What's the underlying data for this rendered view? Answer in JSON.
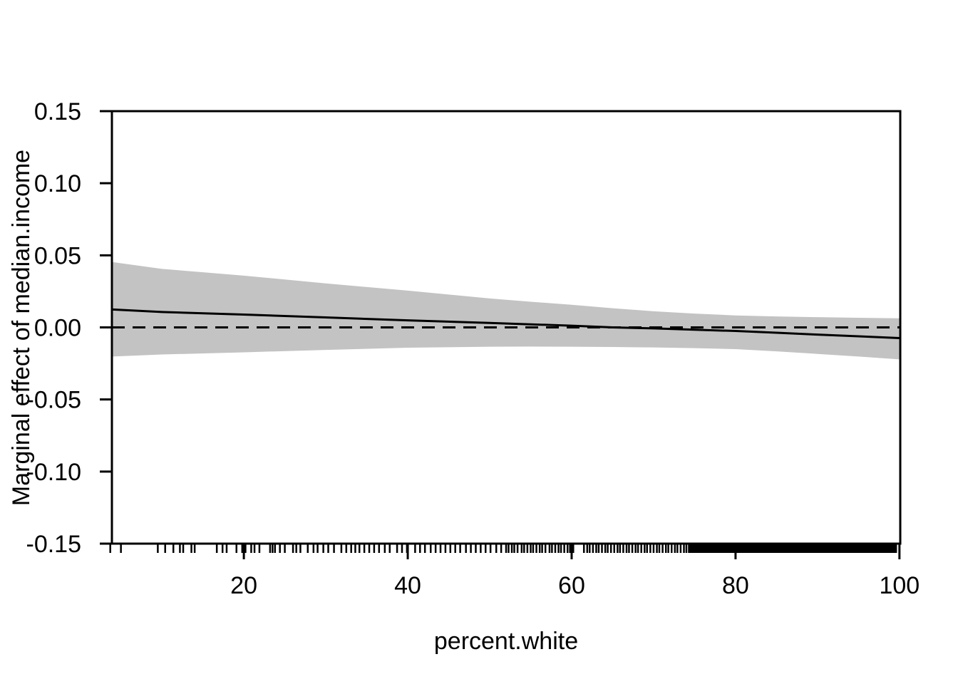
{
  "figure": {
    "background": "#ffffff",
    "x_axis_title": "percent.white",
    "y_axis_title": "Marginal effect of median.income"
  },
  "colors": {
    "band": "#c3c3c3",
    "line": "#000000",
    "axis": "#000000",
    "text": "#000000"
  },
  "chart_data": {
    "type": "line",
    "title": "",
    "xlabel": "percent.white",
    "ylabel": "Marginal effect of median.income",
    "xlim": [
      3.9,
      100.1
    ],
    "ylim": [
      -0.15,
      0.15
    ],
    "x_ticks": [
      20,
      40,
      60,
      80,
      100
    ],
    "y_ticks": [
      -0.15,
      -0.1,
      -0.05,
      0.0,
      0.05,
      0.1,
      0.15
    ],
    "grid": false,
    "box": true,
    "legend": "none",
    "zero_line": {
      "value": 0,
      "style": "dashed"
    },
    "x": [
      4,
      10,
      20,
      30,
      40,
      50,
      55,
      60,
      65,
      70,
      75,
      80,
      85,
      90,
      95,
      100
    ],
    "series": [
      {
        "name": "marginal-effect",
        "style": "solid",
        "values": [
          0.0124,
          0.0107,
          0.0089,
          0.0069,
          0.0049,
          0.0031,
          0.0021,
          0.0012,
          0.0,
          -0.0007,
          -0.0016,
          -0.0025,
          -0.0037,
          -0.005,
          -0.0062,
          -0.0074
        ]
      },
      {
        "name": "ci-upper",
        "style": "band-edge",
        "values": [
          0.0453,
          0.0406,
          0.0359,
          0.0305,
          0.0255,
          0.0201,
          0.0178,
          0.0157,
          0.0133,
          0.0112,
          0.0096,
          0.0083,
          0.0076,
          0.0071,
          0.0067,
          0.0063
        ]
      },
      {
        "name": "ci-lower",
        "style": "band-edge",
        "values": [
          -0.0202,
          -0.0188,
          -0.0173,
          -0.0156,
          -0.0141,
          -0.0134,
          -0.0133,
          -0.0134,
          -0.0136,
          -0.0139,
          -0.0144,
          -0.0151,
          -0.0166,
          -0.0184,
          -0.0202,
          -0.0222
        ]
      }
    ],
    "rug": {
      "ticks": [
        3.7,
        5.0,
        9.5,
        10.4,
        11.4,
        12.2,
        12.6,
        13.6,
        14.0,
        16.7,
        17.4,
        17.9,
        19.1,
        19.8,
        20.2,
        20.9,
        21.3,
        21.9,
        23.2,
        23.5,
        23.8,
        24.4,
        25.0,
        26.0,
        26.4,
        26.9,
        27.8,
        28.5,
        29.0,
        29.7,
        30.3,
        31.0,
        31.9,
        32.5,
        33.1,
        33.6,
        34.1,
        34.7,
        35.3,
        35.9,
        36.5,
        37.2,
        37.8,
        38.7,
        39.3,
        39.9,
        40.9,
        41.5,
        42.1,
        42.8,
        43.4,
        44.0,
        44.6,
        45.2,
        45.8,
        46.4,
        47.1,
        47.7,
        48.3,
        48.9,
        49.5,
        50.1,
        50.8,
        51.4,
        52.0,
        52.3,
        52.7,
        53.0,
        53.4,
        53.9,
        54.2,
        54.6,
        55.0,
        55.3,
        55.7,
        56.1,
        56.4,
        56.8,
        57.3,
        57.6,
        58.0,
        58.4,
        58.7,
        59.1,
        59.5,
        59.8,
        60.2,
        61.5,
        61.9,
        62.2,
        62.6,
        63.0,
        63.3,
        63.7,
        64.1,
        64.4,
        64.8,
        65.2,
        65.6,
        65.9,
        66.3,
        66.7,
        67.0,
        67.4,
        67.8,
        68.1,
        68.5,
        68.9,
        69.2,
        69.6,
        70.0,
        70.4,
        70.7,
        71.1,
        71.5,
        71.8,
        72.2,
        72.6,
        72.9,
        73.3,
        73.7,
        74.0
      ],
      "solid_range": [
        74.2,
        99.7
      ]
    }
  }
}
